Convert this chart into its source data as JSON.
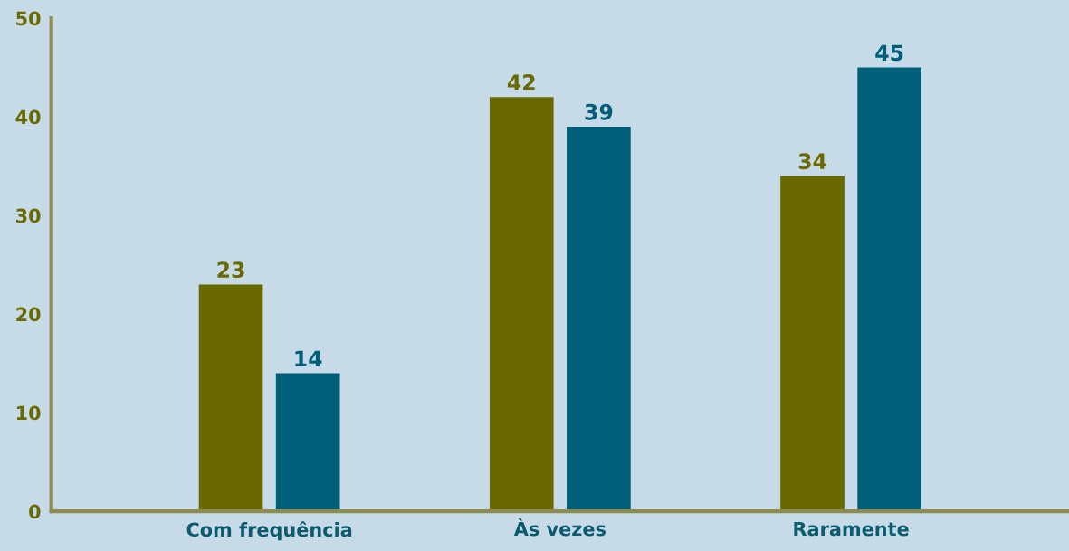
{
  "chart_data": {
    "type": "bar",
    "categories": [
      "Com frequência",
      "Às vezes",
      "Raramente"
    ],
    "series": [
      {
        "color": "#696900",
        "values": [
          23,
          42,
          34
        ]
      },
      {
        "color": "#005e78",
        "values": [
          14,
          39,
          45
        ]
      }
    ],
    "ylim": [
      0,
      50
    ],
    "yticks": [
      0,
      10,
      20,
      30,
      40,
      50
    ],
    "grid": false,
    "data_labels": true
  }
}
